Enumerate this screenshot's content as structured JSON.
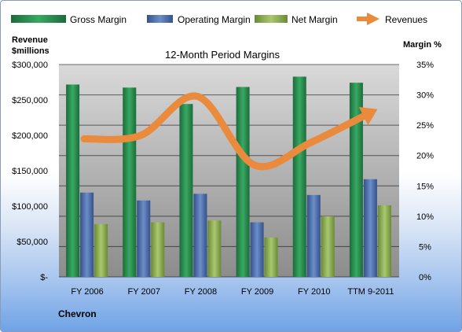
{
  "chart_data": {
    "type": "bar",
    "title": "12-Month Period Margins",
    "company": "Chevron",
    "y_left_label": [
      "Revenue",
      "$millions"
    ],
    "y_right_label": "Margin %",
    "categories": [
      "FY 2006",
      "FY 2007",
      "FY 2008",
      "FY 2009",
      "FY 2010",
      "TTM 9-2011"
    ],
    "y_left": {
      "min": 0,
      "max": 300000,
      "ticks": [
        "$-",
        "$50,000",
        "$100,000",
        "$150,000",
        "$200,000",
        "$250,000",
        "$300,000"
      ]
    },
    "y_right": {
      "min": 0,
      "max": 35,
      "ticks": [
        "0%",
        "5%",
        "10%",
        "15%",
        "20%",
        "25%",
        "30%",
        "35%"
      ]
    },
    "series": [
      {
        "name": "Gross Margin",
        "axis": "right",
        "type": "bar",
        "color": "#2e9a58",
        "values": [
          31.7,
          31.2,
          28.5,
          31.3,
          33.0,
          32.0
        ]
      },
      {
        "name": "Operating Margin",
        "axis": "right",
        "type": "bar",
        "color": "#5579b8",
        "values": [
          13.9,
          12.6,
          13.7,
          9.0,
          13.5,
          16.1
        ]
      },
      {
        "name": "Net Margin",
        "axis": "right",
        "type": "bar",
        "color": "#93b45a",
        "values": [
          8.7,
          9.0,
          9.3,
          6.5,
          10.0,
          11.8
        ]
      },
      {
        "name": "Revenues",
        "axis": "left",
        "type": "line",
        "color": "#e98a3c",
        "values": [
          195000,
          200000,
          255000,
          158000,
          190000,
          230000
        ]
      }
    ],
    "grid": true,
    "legend": "top"
  }
}
